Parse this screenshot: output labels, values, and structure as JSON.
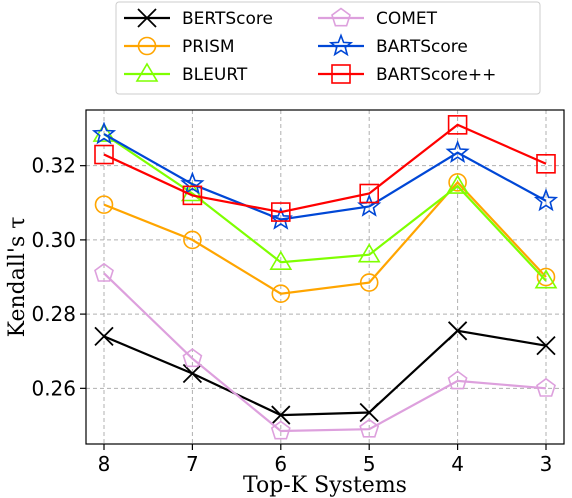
{
  "chart_data": {
    "type": "line",
    "categories": [
      "8",
      "7",
      "6",
      "5",
      "4",
      "3"
    ],
    "xlabel": "Top-K Systems",
    "ylabel": "Kendall's τ",
    "ylim": [
      0.245,
      0.335
    ],
    "yticks": [
      0.26,
      0.28,
      0.3,
      0.32
    ],
    "ytick_labels": [
      "0.26",
      "0.28",
      "0.30",
      "0.32"
    ],
    "grid": true,
    "legend_position": "top",
    "series": [
      {
        "name": "BERTScore",
        "color": "#000000",
        "marker": "x",
        "values": [
          0.274,
          0.264,
          0.2528,
          0.2535,
          0.2755,
          0.2715
        ]
      },
      {
        "name": "PRISM",
        "color": "#ffa500",
        "marker": "circle",
        "values": [
          0.3095,
          0.3,
          0.2855,
          0.2885,
          0.3155,
          0.29
        ]
      },
      {
        "name": "BLEURT",
        "color": "#7fff00",
        "marker": "triangle",
        "values": [
          0.3285,
          0.3125,
          0.294,
          0.296,
          0.3145,
          0.289
        ]
      },
      {
        "name": "COMET",
        "color": "#dda0dd",
        "marker": "pentagon",
        "values": [
          0.291,
          0.268,
          0.2485,
          0.249,
          0.262,
          0.26
        ]
      },
      {
        "name": "BARTScore",
        "color": "#0047d6",
        "marker": "star",
        "values": [
          0.3285,
          0.315,
          0.3055,
          0.309,
          0.3235,
          0.3105
        ]
      },
      {
        "name": "BARTScore++",
        "color": "#ff0000",
        "marker": "square",
        "values": [
          0.323,
          0.312,
          0.3075,
          0.3125,
          0.331,
          0.3205
        ]
      }
    ],
    "legend_order": [
      "BERTScore",
      "COMET",
      "PRISM",
      "BARTScore",
      "BLEURT",
      "BARTScore++"
    ]
  }
}
